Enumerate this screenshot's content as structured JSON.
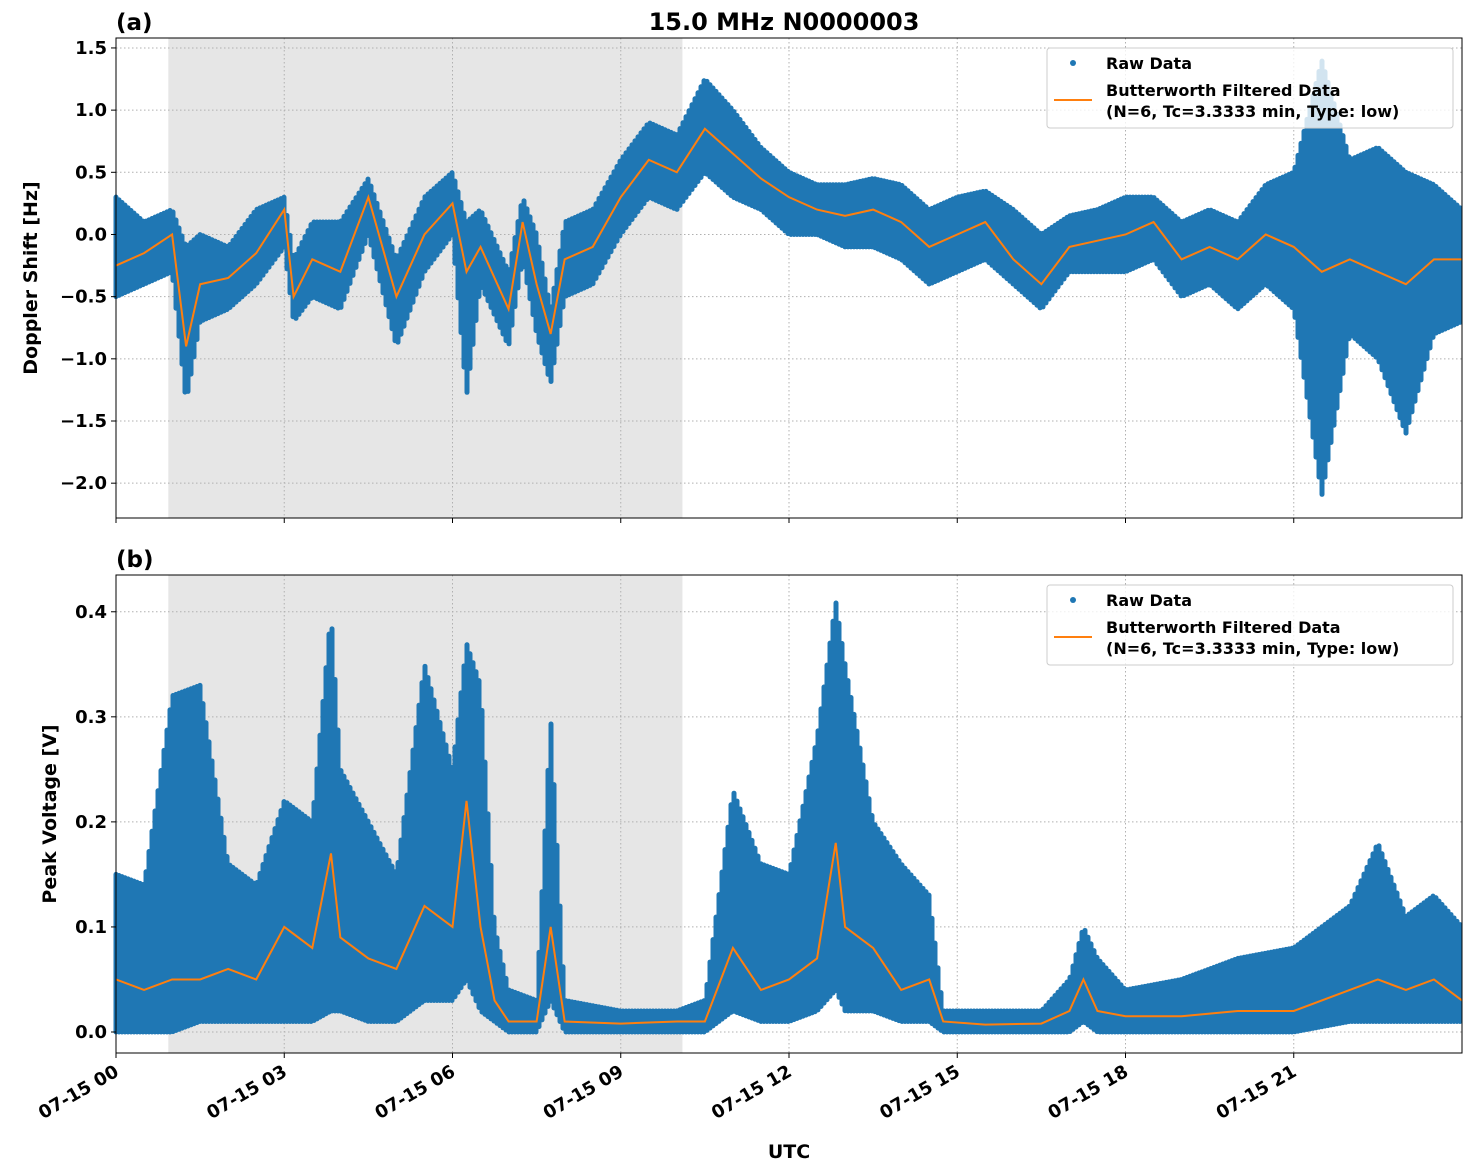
{
  "title": "15.0 MHz N0000003",
  "colors": {
    "raw": "#1f77b4",
    "filtered": "#ff7f0e",
    "shade": "#e6e6e6",
    "grid": "#b0b0b0"
  },
  "chart_data": [
    {
      "type": "scatter",
      "panel_label": "(a)",
      "ylabel": "Doppler Shift [Hz]",
      "xlabel": "",
      "xlim": [
        "07-15 00:00",
        "07-16 00:00"
      ],
      "ylim": [
        -2.28,
        1.58
      ],
      "x_ticks": [
        "07-15 00",
        "07-15 03",
        "07-15 06",
        "07-15 09",
        "07-15 12",
        "07-15 15",
        "07-15 18",
        "07-15 21"
      ],
      "y_ticks": [
        -2.0,
        -1.5,
        -1.0,
        -0.5,
        0.0,
        0.5,
        1.0,
        1.5
      ],
      "y_tick_labels": [
        "−2.0",
        "−1.5",
        "−1.0",
        "−0.5",
        "0.0",
        "0.5",
        "1.0",
        "1.5"
      ],
      "grid": true,
      "legend_placement": "top-right",
      "legend": [
        "Raw Data",
        "Butterworth Filtered Data",
        "(N=6, Tc=3.3333 min, Type: low)"
      ],
      "shaded_interval": [
        "07-15 00:56",
        "07-15 10:06"
      ],
      "series": [
        {
          "name": "Raw Data",
          "style": "points",
          "note_fields": [
            "x",
            "min",
            "max"
          ],
          "x": [
            "07-15 00:00",
            "07-15 00:30",
            "07-15 01:00",
            "07-15 01:15",
            "07-15 01:30",
            "07-15 02:00",
            "07-15 02:30",
            "07-15 03:00",
            "07-15 03:10",
            "07-15 03:30",
            "07-15 04:00",
            "07-15 04:30",
            "07-15 05:00",
            "07-15 05:30",
            "07-15 06:00",
            "07-15 06:15",
            "07-15 06:30",
            "07-15 07:00",
            "07-15 07:15",
            "07-15 07:30",
            "07-15 07:45",
            "07-15 08:00",
            "07-15 08:30",
            "07-15 09:00",
            "07-15 09:30",
            "07-15 10:00",
            "07-15 10:30",
            "07-15 11:00",
            "07-15 11:30",
            "07-15 12:00",
            "07-15 12:30",
            "07-15 13:00",
            "07-15 13:30",
            "07-15 14:00",
            "07-15 14:30",
            "07-15 15:00",
            "07-15 15:30",
            "07-15 16:00",
            "07-15 16:30",
            "07-15 17:00",
            "07-15 17:30",
            "07-15 18:00",
            "07-15 18:30",
            "07-15 19:00",
            "07-15 19:30",
            "07-15 20:00",
            "07-15 20:30",
            "07-15 21:00",
            "07-15 21:30",
            "07-15 22:00",
            "07-15 22:30",
            "07-15 23:00",
            "07-15 23:30",
            "07-16 00:00"
          ],
          "min": [
            -0.5,
            -0.4,
            -0.3,
            -1.35,
            -0.7,
            -0.6,
            -0.4,
            -0.1,
            -0.7,
            -0.5,
            -0.6,
            0.0,
            -0.9,
            -0.3,
            0.0,
            -1.3,
            -0.4,
            -0.9,
            -0.2,
            -0.8,
            -1.2,
            -0.5,
            -0.4,
            0.0,
            0.3,
            0.2,
            0.5,
            0.3,
            0.2,
            0.0,
            0.0,
            -0.1,
            -0.1,
            -0.2,
            -0.4,
            -0.3,
            -0.2,
            -0.4,
            -0.6,
            -0.3,
            -0.3,
            -0.3,
            -0.2,
            -0.5,
            -0.4,
            -0.6,
            -0.4,
            -0.6,
            -2.1,
            -0.8,
            -1.0,
            -1.6,
            -0.8,
            -0.7
          ],
          "max": [
            0.3,
            0.1,
            0.2,
            -0.1,
            0.0,
            -0.1,
            0.2,
            0.3,
            -0.2,
            0.1,
            0.1,
            0.45,
            -0.2,
            0.3,
            0.5,
            0.1,
            0.2,
            -0.3,
            0.3,
            0.0,
            -0.6,
            0.1,
            0.2,
            0.6,
            0.9,
            0.8,
            1.25,
            1.0,
            0.7,
            0.5,
            0.4,
            0.4,
            0.45,
            0.4,
            0.2,
            0.3,
            0.35,
            0.2,
            0.0,
            0.15,
            0.2,
            0.3,
            0.3,
            0.1,
            0.2,
            0.1,
            0.4,
            0.5,
            1.4,
            0.6,
            0.7,
            0.5,
            0.4,
            0.2
          ]
        },
        {
          "name": "Butterworth Filtered Data",
          "style": "line",
          "x": [
            "07-15 00:00",
            "07-15 00:30",
            "07-15 01:00",
            "07-15 01:15",
            "07-15 01:30",
            "07-15 02:00",
            "07-15 02:30",
            "07-15 03:00",
            "07-15 03:10",
            "07-15 03:30",
            "07-15 04:00",
            "07-15 04:30",
            "07-15 05:00",
            "07-15 05:30",
            "07-15 06:00",
            "07-15 06:15",
            "07-15 06:30",
            "07-15 07:00",
            "07-15 07:15",
            "07-15 07:30",
            "07-15 07:45",
            "07-15 08:00",
            "07-15 08:30",
            "07-15 09:00",
            "07-15 09:30",
            "07-15 10:00",
            "07-15 10:30",
            "07-15 11:00",
            "07-15 11:30",
            "07-15 12:00",
            "07-15 12:30",
            "07-15 13:00",
            "07-15 13:30",
            "07-15 14:00",
            "07-15 14:30",
            "07-15 15:00",
            "07-15 15:30",
            "07-15 16:00",
            "07-15 16:30",
            "07-15 17:00",
            "07-15 17:30",
            "07-15 18:00",
            "07-15 18:30",
            "07-15 19:00",
            "07-15 19:30",
            "07-15 20:00",
            "07-15 20:30",
            "07-15 21:00",
            "07-15 21:30",
            "07-15 22:00",
            "07-15 22:30",
            "07-15 23:00",
            "07-15 23:30",
            "07-16 00:00"
          ],
          "y": [
            -0.25,
            -0.15,
            0.0,
            -0.9,
            -0.4,
            -0.35,
            -0.15,
            0.2,
            -0.5,
            -0.2,
            -0.3,
            0.3,
            -0.5,
            0.0,
            0.25,
            -0.3,
            -0.1,
            -0.6,
            0.1,
            -0.4,
            -0.8,
            -0.2,
            -0.1,
            0.3,
            0.6,
            0.5,
            0.85,
            0.65,
            0.45,
            0.3,
            0.2,
            0.15,
            0.2,
            0.1,
            -0.1,
            0.0,
            0.1,
            -0.2,
            -0.4,
            -0.1,
            -0.05,
            0.0,
            0.1,
            -0.2,
            -0.1,
            -0.2,
            0.0,
            -0.1,
            -0.3,
            -0.2,
            -0.3,
            -0.4,
            -0.2,
            -0.2
          ]
        }
      ]
    },
    {
      "type": "scatter",
      "panel_label": "(b)",
      "ylabel": "Peak Voltage [V]",
      "xlabel": "UTC",
      "xlim": [
        "07-15 00:00",
        "07-16 00:00"
      ],
      "ylim": [
        -0.02,
        0.435
      ],
      "x_ticks": [
        "07-15 00",
        "07-15 03",
        "07-15 06",
        "07-15 09",
        "07-15 12",
        "07-15 15",
        "07-15 18",
        "07-15 21"
      ],
      "y_ticks": [
        0.0,
        0.1,
        0.2,
        0.3,
        0.4
      ],
      "y_tick_labels": [
        "0.0",
        "0.1",
        "0.2",
        "0.3",
        "0.4"
      ],
      "grid": true,
      "legend_placement": "top-right",
      "legend": [
        "Raw Data",
        "Butterworth Filtered Data",
        "(N=6, Tc=3.3333 min, Type: low)"
      ],
      "shaded_interval": [
        "07-15 00:56",
        "07-15 10:06"
      ],
      "series": [
        {
          "name": "Raw Data",
          "style": "points",
          "x": [
            "07-15 00:00",
            "07-15 00:30",
            "07-15 01:00",
            "07-15 01:30",
            "07-15 02:00",
            "07-15 02:30",
            "07-15 03:00",
            "07-15 03:30",
            "07-15 03:50",
            "07-15 04:00",
            "07-15 04:30",
            "07-15 05:00",
            "07-15 05:30",
            "07-15 06:00",
            "07-15 06:15",
            "07-15 06:30",
            "07-15 06:45",
            "07-15 07:00",
            "07-15 07:30",
            "07-15 07:45",
            "07-15 08:00",
            "07-15 09:00",
            "07-15 10:00",
            "07-15 10:30",
            "07-15 11:00",
            "07-15 11:30",
            "07-15 12:00",
            "07-15 12:30",
            "07-15 12:50",
            "07-15 13:00",
            "07-15 13:30",
            "07-15 14:00",
            "07-15 14:30",
            "07-15 14:45",
            "07-15 15:30",
            "07-15 16:30",
            "07-15 17:00",
            "07-15 17:15",
            "07-15 17:30",
            "07-15 18:00",
            "07-15 19:00",
            "07-15 20:00",
            "07-15 21:00",
            "07-15 22:00",
            "07-15 22:30",
            "07-15 23:00",
            "07-15 23:30",
            "07-16 00:00"
          ],
          "min": [
            0.0,
            0.0,
            0.0,
            0.01,
            0.01,
            0.01,
            0.01,
            0.01,
            0.02,
            0.02,
            0.01,
            0.01,
            0.03,
            0.03,
            0.05,
            0.02,
            0.01,
            0.0,
            0.0,
            0.03,
            0.0,
            0.0,
            0.0,
            0.0,
            0.02,
            0.01,
            0.01,
            0.02,
            0.04,
            0.02,
            0.02,
            0.01,
            0.01,
            0.0,
            0.0,
            0.0,
            0.0,
            0.01,
            0.0,
            0.0,
            0.0,
            0.0,
            0.0,
            0.01,
            0.01,
            0.01,
            0.01,
            0.01
          ],
          "max": [
            0.15,
            0.14,
            0.32,
            0.33,
            0.16,
            0.14,
            0.22,
            0.2,
            0.4,
            0.25,
            0.2,
            0.15,
            0.35,
            0.25,
            0.37,
            0.33,
            0.1,
            0.04,
            0.03,
            0.3,
            0.03,
            0.02,
            0.02,
            0.03,
            0.23,
            0.16,
            0.15,
            0.28,
            0.41,
            0.35,
            0.2,
            0.16,
            0.13,
            0.02,
            0.02,
            0.02,
            0.05,
            0.1,
            0.07,
            0.04,
            0.05,
            0.07,
            0.08,
            0.12,
            0.18,
            0.11,
            0.13,
            0.1
          ]
        },
        {
          "name": "Butterworth Filtered Data",
          "style": "line",
          "x": [
            "07-15 00:00",
            "07-15 00:30",
            "07-15 01:00",
            "07-15 01:30",
            "07-15 02:00",
            "07-15 02:30",
            "07-15 03:00",
            "07-15 03:30",
            "07-15 03:50",
            "07-15 04:00",
            "07-15 04:30",
            "07-15 05:00",
            "07-15 05:30",
            "07-15 06:00",
            "07-15 06:15",
            "07-15 06:30",
            "07-15 06:45",
            "07-15 07:00",
            "07-15 07:30",
            "07-15 07:45",
            "07-15 08:00",
            "07-15 09:00",
            "07-15 10:00",
            "07-15 10:30",
            "07-15 11:00",
            "07-15 11:30",
            "07-15 12:00",
            "07-15 12:30",
            "07-15 12:50",
            "07-15 13:00",
            "07-15 13:30",
            "07-15 14:00",
            "07-15 14:30",
            "07-15 14:45",
            "07-15 15:30",
            "07-15 16:30",
            "07-15 17:00",
            "07-15 17:15",
            "07-15 17:30",
            "07-15 18:00",
            "07-15 19:00",
            "07-15 20:00",
            "07-15 21:00",
            "07-15 22:00",
            "07-15 22:30",
            "07-15 23:00",
            "07-15 23:30",
            "07-16 00:00"
          ],
          "y": [
            0.05,
            0.04,
            0.05,
            0.05,
            0.06,
            0.05,
            0.1,
            0.08,
            0.17,
            0.09,
            0.07,
            0.06,
            0.12,
            0.1,
            0.22,
            0.1,
            0.03,
            0.01,
            0.01,
            0.1,
            0.01,
            0.008,
            0.01,
            0.01,
            0.08,
            0.04,
            0.05,
            0.07,
            0.18,
            0.1,
            0.08,
            0.04,
            0.05,
            0.01,
            0.007,
            0.008,
            0.02,
            0.05,
            0.02,
            0.015,
            0.015,
            0.02,
            0.02,
            0.04,
            0.05,
            0.04,
            0.05,
            0.03
          ]
        }
      ]
    }
  ]
}
